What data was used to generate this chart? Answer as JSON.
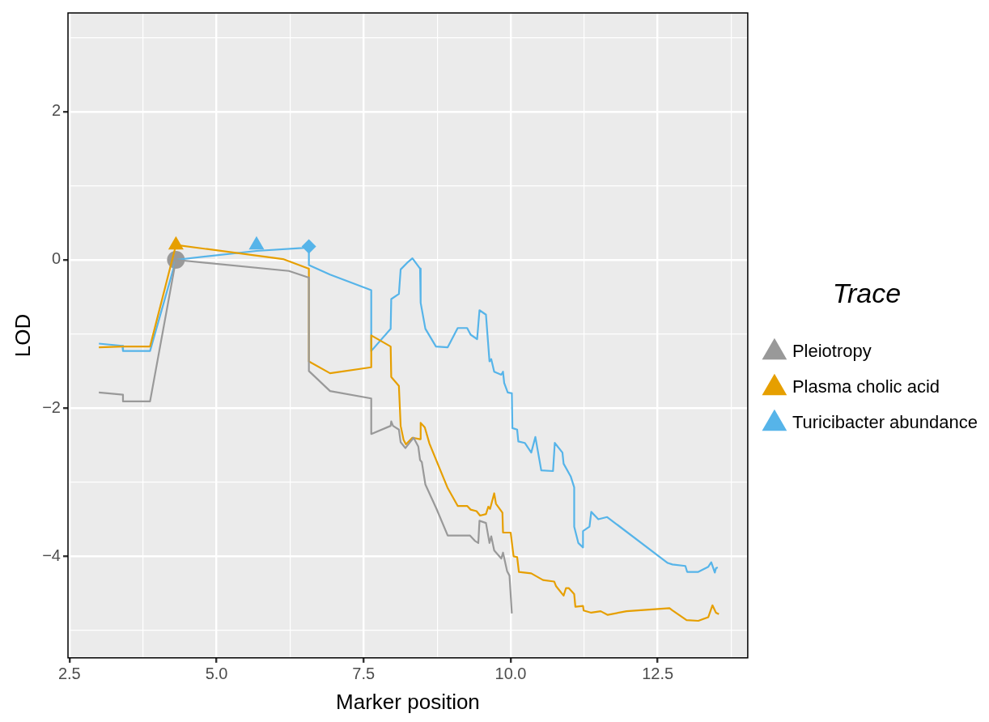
{
  "chart_data": {
    "type": "line",
    "xlabel": "Marker position",
    "ylabel": "LOD",
    "legend_title": "Trace",
    "legend": "right",
    "grid": true,
    "marker": "none",
    "line_style": "solid",
    "xlim": [
      2.475,
      14.03
    ],
    "ylim": [
      -5.37,
      3.33
    ],
    "xticks": [
      {
        "value": 2.5,
        "label": "2.5"
      },
      {
        "value": 3.75,
        "label": null
      },
      {
        "value": 5,
        "label": "5.0"
      },
      {
        "value": 6.25,
        "label": null
      },
      {
        "value": 7.5,
        "label": "7.5"
      },
      {
        "value": 8.75,
        "label": null
      },
      {
        "value": 10,
        "label": "10.0"
      },
      {
        "value": 11.25,
        "label": null
      },
      {
        "value": 12.5,
        "label": "12.5"
      },
      {
        "value": 13.75,
        "label": null
      }
    ],
    "yticks": [
      {
        "value": -5,
        "label": null
      },
      {
        "value": -4,
        "label": "−4"
      },
      {
        "value": -3,
        "label": null
      },
      {
        "value": -2,
        "label": "−2"
      },
      {
        "value": -1,
        "label": null
      },
      {
        "value": 0,
        "label": "0"
      },
      {
        "value": 1,
        "label": null
      },
      {
        "value": 2,
        "label": "2"
      },
      {
        "value": 3,
        "label": null
      }
    ],
    "series": [
      {
        "name": "Pleiotropy",
        "color": "#999999",
        "x": [
          3.0,
          3.41,
          3.41,
          3.87,
          4.31,
          6.23,
          6.57,
          6.57,
          6.93,
          7.63,
          7.63,
          7.96,
          7.97,
          8.0,
          8.1,
          8.13,
          8.21,
          8.27,
          8.35,
          8.43,
          8.46,
          8.49,
          8.55,
          8.74,
          8.93,
          9.21,
          9.31,
          9.39,
          9.45,
          9.47,
          9.58,
          9.64,
          9.67,
          9.72,
          9.84,
          9.87,
          9.94,
          9.98,
          10.02
        ],
        "values": [
          -1.79,
          -1.82,
          -1.91,
          -1.91,
          0,
          -0.15,
          -0.24,
          -1.5,
          -1.77,
          -1.87,
          -2.35,
          -2.24,
          -2.18,
          -2.24,
          -2.29,
          -2.46,
          -2.54,
          -2.48,
          -2.4,
          -2.52,
          -2.7,
          -2.73,
          -3.03,
          -3.36,
          -3.72,
          -3.72,
          -3.72,
          -3.79,
          -3.82,
          -3.52,
          -3.55,
          -3.82,
          -3.73,
          -3.92,
          -4.03,
          -3.95,
          -4.2,
          -4.26,
          -4.77
        ]
      },
      {
        "name": "Plasma cholic acid",
        "color": "#E69F00",
        "x": [
          3.0,
          3.4,
          3.87,
          4.31,
          6.13,
          6.57,
          6.57,
          6.93,
          7.63,
          7.63,
          7.96,
          7.97,
          8.1,
          8.13,
          8.18,
          8.22,
          8.33,
          8.46,
          8.47,
          8.54,
          8.62,
          8.93,
          9.1,
          9.26,
          9.32,
          9.42,
          9.48,
          9.58,
          9.62,
          9.65,
          9.72,
          9.75,
          9.86,
          9.87,
          10.0,
          10.05,
          10.11,
          10.14,
          10.35,
          10.55,
          10.74,
          10.77,
          10.9,
          10.94,
          10.99,
          11.08,
          11.1,
          11.23,
          11.24,
          11.37,
          11.53,
          11.65,
          11.97,
          12.7,
          12.75,
          12.99,
          13.19,
          13.36,
          13.43,
          13.49,
          13.54
        ],
        "values": [
          -1.18,
          -1.17,
          -1.17,
          0.2,
          0.01,
          -0.12,
          -1.37,
          -1.53,
          -1.45,
          -1.02,
          -1.17,
          -1.58,
          -1.7,
          -2.24,
          -2.43,
          -2.49,
          -2.4,
          -2.42,
          -2.2,
          -2.26,
          -2.48,
          -3.08,
          -3.32,
          -3.32,
          -3.37,
          -3.39,
          -3.45,
          -3.43,
          -3.33,
          -3.36,
          -3.15,
          -3.29,
          -3.41,
          -3.68,
          -3.68,
          -4.0,
          -4.01,
          -4.21,
          -4.23,
          -4.32,
          -4.34,
          -4.4,
          -4.53,
          -4.43,
          -4.43,
          -4.51,
          -4.68,
          -4.67,
          -4.73,
          -4.76,
          -4.74,
          -4.79,
          -4.74,
          -4.7,
          -4.73,
          -4.86,
          -4.87,
          -4.82,
          -4.66,
          -4.76,
          -4.78
        ]
      },
      {
        "name": "Turicibacter abundance",
        "color": "#56B4E9",
        "x": [
          3.0,
          3.4,
          3.41,
          3.87,
          4.31,
          5.68,
          6.46,
          6.57,
          6.57,
          6.93,
          7.63,
          7.63,
          7.96,
          7.97,
          8.1,
          8.13,
          8.24,
          8.33,
          8.46,
          8.47,
          8.55,
          8.73,
          8.93,
          9.1,
          9.26,
          9.32,
          9.43,
          9.47,
          9.58,
          9.64,
          9.67,
          9.72,
          9.84,
          9.87,
          9.89,
          9.95,
          10.02,
          10.03,
          10.11,
          10.13,
          10.24,
          10.35,
          10.42,
          10.52,
          10.72,
          10.75,
          10.88,
          10.9,
          11.02,
          11.08,
          11.08,
          11.15,
          11.23,
          11.23,
          11.34,
          11.37,
          11.49,
          11.64,
          12.67,
          12.75,
          12.97,
          13.0,
          13.19,
          13.36,
          13.41,
          13.47,
          13.49,
          13.52
        ],
        "values": [
          -1.13,
          -1.16,
          -1.23,
          -1.23,
          0.0,
          0.12,
          0.16,
          0.17,
          -0.07,
          -0.2,
          -0.41,
          -1.23,
          -0.93,
          -0.53,
          -0.46,
          -0.13,
          -0.04,
          0.02,
          -0.12,
          -0.58,
          -0.93,
          -1.17,
          -1.18,
          -0.92,
          -0.92,
          -1.01,
          -1.07,
          -0.68,
          -0.74,
          -1.37,
          -1.34,
          -1.51,
          -1.55,
          -1.51,
          -1.66,
          -1.79,
          -1.8,
          -2.27,
          -2.29,
          -2.45,
          -2.47,
          -2.6,
          -2.39,
          -2.84,
          -2.85,
          -2.47,
          -2.6,
          -2.75,
          -2.92,
          -3.07,
          -3.6,
          -3.82,
          -3.88,
          -3.66,
          -3.6,
          -3.4,
          -3.5,
          -3.47,
          -4.09,
          -4.11,
          -4.13,
          -4.21,
          -4.21,
          -4.14,
          -4.08,
          -4.22,
          -4.16,
          -4.15
        ]
      },
      {
        "type": "scatter",
        "marker": "circle",
        "color": "#999999",
        "x": [
          4.31
        ],
        "values": [
          0
        ]
      },
      {
        "type": "scatter",
        "marker": "triangle",
        "color": "#E69F00",
        "x": [
          4.31
        ],
        "values": [
          0.2
        ]
      },
      {
        "type": "scatter",
        "marker": "triangle",
        "color": "#56B4E9",
        "x": [
          5.68
        ],
        "values": [
          0.2
        ]
      },
      {
        "type": "scatter",
        "marker": "diamond",
        "color": "#56B4E9",
        "x": [
          6.57
        ],
        "values": [
          0.18
        ]
      }
    ]
  }
}
